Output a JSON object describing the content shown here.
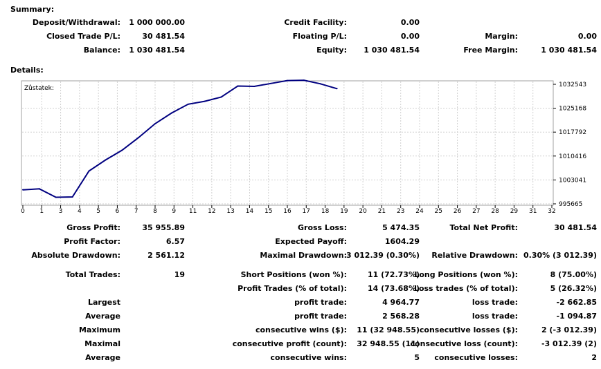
{
  "summary": {
    "title": "Summary:",
    "rows": [
      [
        {
          "label": "Deposit/Withdrawal:",
          "value": "1 000 000.00"
        },
        {
          "label": "Credit Facility:",
          "value": "0.00"
        },
        {
          "label": "",
          "value": ""
        }
      ],
      [
        {
          "label": "Closed Trade P/L:",
          "value": "30 481.54"
        },
        {
          "label": "Floating P/L:",
          "value": "0.00"
        },
        {
          "label": "Margin:",
          "value": "0.00"
        }
      ],
      [
        {
          "label": "Balance:",
          "value": "1 030 481.54"
        },
        {
          "label": "Equity:",
          "value": "1 030 481.54"
        },
        {
          "label": "Free Margin:",
          "value": "1 030 481.54"
        }
      ]
    ]
  },
  "details": {
    "title": "Details:",
    "rows": [
      [
        {
          "label": "Gross Profit:",
          "value": "35 955.89"
        },
        {
          "label": "Gross Loss:",
          "value": "5 474.35"
        },
        {
          "label": "Total Net Profit:",
          "value": "30 481.54"
        }
      ],
      [
        {
          "label": "Profit Factor:",
          "value": "6.57"
        },
        {
          "label": "Expected Payoff:",
          "value": "1604.29"
        },
        {
          "label": "",
          "value": ""
        }
      ],
      [
        {
          "label": "Absolute Drawdown:",
          "value": "2 561.12"
        },
        {
          "label": "Maximal Drawdown:",
          "value": "3 012.39 (0.30%)"
        },
        {
          "label": "Relative Drawdown:",
          "value": "0.30% (3 012.39)"
        }
      ],
      [
        {
          "label": "Total Trades:",
          "value": "19"
        },
        {
          "label": "Short Positions (won %):",
          "value": "11 (72.73%)"
        },
        {
          "label": "Long Positions (won %):",
          "value": "8 (75.00%)"
        }
      ],
      [
        {
          "label": "",
          "value": ""
        },
        {
          "label": "Profit Trades (% of total):",
          "value": "14 (73.68%)"
        },
        {
          "label": "Loss trades (% of total):",
          "value": "5 (26.32%)"
        }
      ],
      [
        {
          "label": "Largest",
          "value": ""
        },
        {
          "label": "profit trade:",
          "value": "4 964.77"
        },
        {
          "label": "loss trade:",
          "value": "-2 662.85"
        }
      ],
      [
        {
          "label": "Average",
          "value": ""
        },
        {
          "label": "profit trade:",
          "value": "2 568.28"
        },
        {
          "label": "loss trade:",
          "value": "-1 094.87"
        }
      ],
      [
        {
          "label": "Maximum",
          "value": ""
        },
        {
          "label": "consecutive wins ($):",
          "value": "11 (32 948.55)"
        },
        {
          "label": "consecutive losses ($):",
          "value": "2 (-3 012.39)"
        }
      ],
      [
        {
          "label": "Maximal",
          "value": ""
        },
        {
          "label": "consecutive profit (count):",
          "value": "32 948.55 (11)"
        },
        {
          "label": "consecutive loss (count):",
          "value": "-3 012.39 (2)"
        }
      ],
      [
        {
          "label": "Average",
          "value": ""
        },
        {
          "label": "consecutive wins:",
          "value": "5"
        },
        {
          "label": "consecutive losses:",
          "value": "2"
        }
      ]
    ]
  },
  "chart_data": {
    "type": "line",
    "title": "Zůstatek:",
    "x_ticks": [
      "0",
      "1",
      "3",
      "4",
      "5",
      "6",
      "7",
      "8",
      "9",
      "11",
      "12",
      "13",
      "14",
      "15",
      "16",
      "17",
      "18",
      "19",
      "20",
      "21",
      "23",
      "24",
      "25",
      "26",
      "27",
      "28",
      "29",
      "31",
      "32"
    ],
    "y_ticks": [
      "1032543",
      "1025168",
      "1017792",
      "1010416",
      "1003041",
      "995665"
    ],
    "ylim": [
      995665,
      1032543
    ],
    "x": [
      0,
      1,
      2,
      3,
      4,
      5,
      6,
      7,
      8,
      9,
      10,
      11,
      12,
      13,
      14,
      15,
      16,
      17,
      18,
      19
    ],
    "values": [
      1000000,
      1000300,
      997700,
      997800,
      1005800,
      1009200,
      1012200,
      1016100,
      1020400,
      1023700,
      1026400,
      1027300,
      1028600,
      1032000,
      1031900,
      1032800,
      1033700,
      1033800,
      1032700,
      1031200
    ],
    "line_color": "#000080",
    "grid_color": "#d0d0d0"
  }
}
